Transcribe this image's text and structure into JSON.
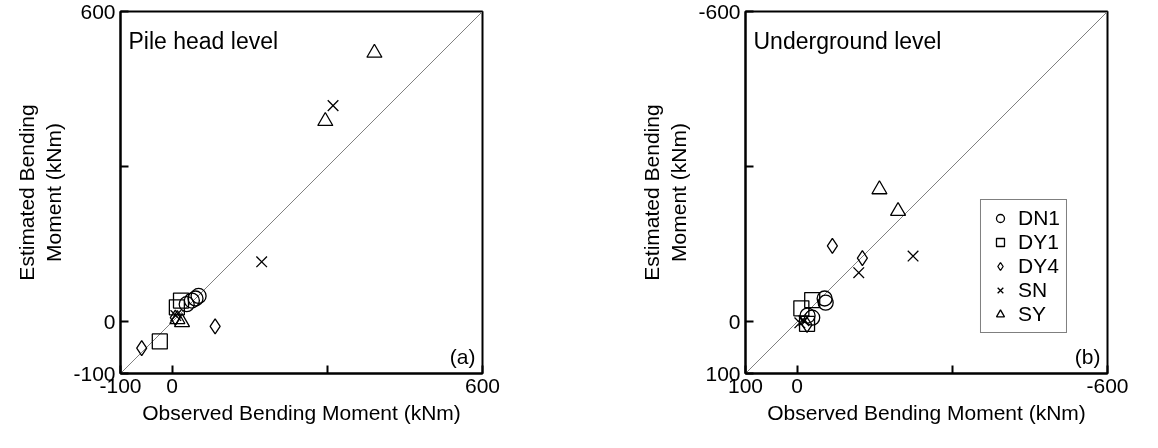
{
  "chart_data": [
    {
      "type": "scatter",
      "xlabel": "Observed Bending Moment (kNm)",
      "ylabel": "Estimated Bending\nMoment (kNm)",
      "annotations": [
        "Pile head level",
        "(a)"
      ],
      "xlim": [
        -100,
        600
      ],
      "ylim": [
        -100,
        600
      ],
      "xticks": [
        -100,
        0,
        {
          "value": 300,
          "label": null
        },
        600
      ],
      "yticks": [
        -100,
        0,
        {
          "value": 300,
          "label": null
        },
        600
      ],
      "grid": false,
      "legend": false,
      "series": [
        {
          "type": "line",
          "color": "#808080",
          "x": [
            -100,
            600
          ],
          "values": [
            -100,
            600
          ]
        },
        {
          "color": "#000000",
          "marker": "circle",
          "x": [
            51,
            38,
            28,
            45
          ],
          "values": [
            50,
            41,
            34,
            45
          ]
        },
        {
          "color": "#000000",
          "marker": "square",
          "x": [
            17,
            9,
            -24
          ],
          "values": [
            41,
            28,
            -38
          ]
        },
        {
          "color": "#000000",
          "marker": "diamond",
          "x": [
            83,
            -59,
            6
          ],
          "values": [
            -9,
            -51,
            8
          ]
        },
        {
          "color": "#000000",
          "marker": "cross",
          "x": [
            311,
            173,
            7
          ],
          "values": [
            418,
            116,
            12
          ]
        },
        {
          "color": "#000000",
          "marker": "triangle",
          "x": [
            391,
            296,
            19,
            10
          ],
          "values": [
            520,
            388,
            -1,
            5
          ]
        }
      ]
    },
    {
      "type": "scatter",
      "xlabel": "Observed Bending Moment (kNm)",
      "ylabel": "Estimated Bending\nMoment (kNm)",
      "annotations": [
        "Underground level",
        "(b)"
      ],
      "xlim": [
        100,
        -600
      ],
      "ylim": [
        100,
        -600
      ],
      "xticks": [
        100,
        0,
        {
          "value": -300,
          "label": null
        },
        -600
      ],
      "yticks": [
        100,
        0,
        {
          "value": -300,
          "label": null
        },
        -600
      ],
      "grid": false,
      "legend": "bottom right",
      "series": [
        {
          "type": "line",
          "color": "#808080",
          "x": [
            100,
            -600
          ],
          "values": [
            100,
            -600
          ]
        },
        {
          "name": "DN1",
          "color": "#000000",
          "marker": "circle",
          "x": [
            -55,
            -53,
            -29,
            -20
          ],
          "values": [
            -37,
            -45,
            -8,
            -12
          ]
        },
        {
          "name": "DY1",
          "color": "#000000",
          "marker": "square",
          "x": [
            -29,
            -8,
            -19
          ],
          "values": [
            -42,
            -26,
            4
          ]
        },
        {
          "name": "DY4",
          "color": "#000000",
          "marker": "diamond",
          "x": [
            -68,
            -126,
            -19
          ],
          "values": [
            -147,
            -123,
            6
          ]
        },
        {
          "name": "SN",
          "color": "#000000",
          "marker": "cross",
          "x": [
            -119,
            -224,
            -13,
            -5
          ],
          "values": [
            -95,
            -127,
            -2,
            2
          ]
        },
        {
          "name": "SY",
          "color": "#000000",
          "marker": "triangle",
          "x": [
            -159,
            -195
          ],
          "values": [
            -256,
            -214
          ]
        }
      ]
    }
  ]
}
